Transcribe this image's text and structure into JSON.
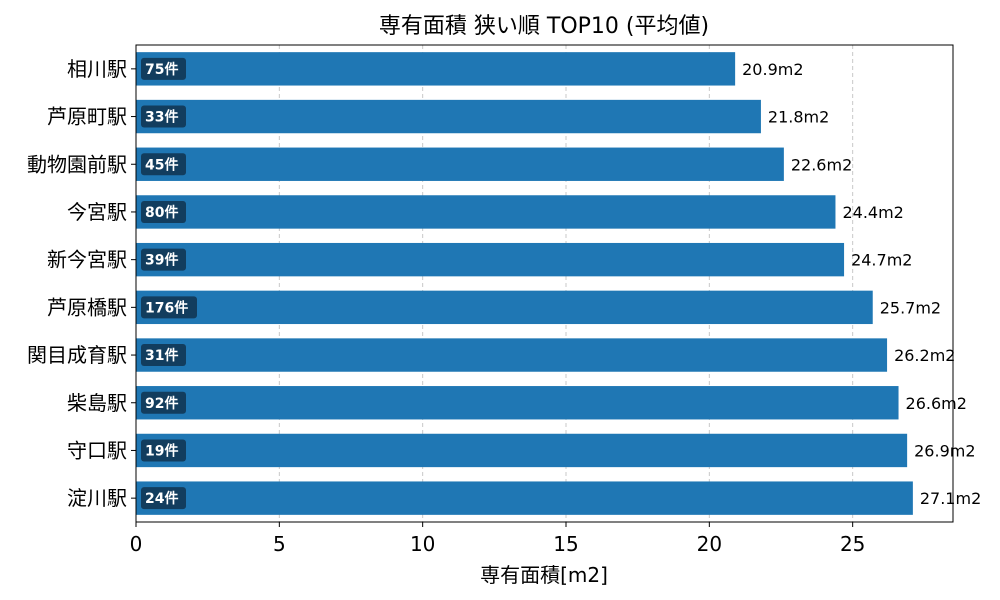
{
  "chart_data": {
    "type": "bar",
    "orientation": "horizontal",
    "title": "専有面積 狭い順 TOP10 (平均値)",
    "xlabel": "専有面積[m2]",
    "ylabel": "",
    "xlim": [
      0,
      28.5
    ],
    "xticks": [
      0,
      5,
      10,
      15,
      20,
      25
    ],
    "grid": "x-dashed",
    "categories": [
      "相川駅",
      "芦原町駅",
      "動物園前駅",
      "今宮駅",
      "新今宮駅",
      "芦原橋駅",
      "関目成育駅",
      "柴島駅",
      "守口駅",
      "淀川駅"
    ],
    "values": [
      20.9,
      21.8,
      22.6,
      24.4,
      24.7,
      25.7,
      26.2,
      26.6,
      26.9,
      27.1
    ],
    "value_labels": [
      "20.9m2",
      "21.8m2",
      "22.6m2",
      "24.4m2",
      "24.7m2",
      "25.7m2",
      "26.2m2",
      "26.6m2",
      "26.9m2",
      "27.1m2"
    ],
    "counts": [
      "75件",
      "33件",
      "45件",
      "80件",
      "39件",
      "176件",
      "31件",
      "92件",
      "19件",
      "24件"
    ],
    "colors": {
      "bar": "#1f77b4",
      "count_badge": "#123d5e",
      "grid": "#c8c8c8",
      "axis": "#000000"
    }
  }
}
